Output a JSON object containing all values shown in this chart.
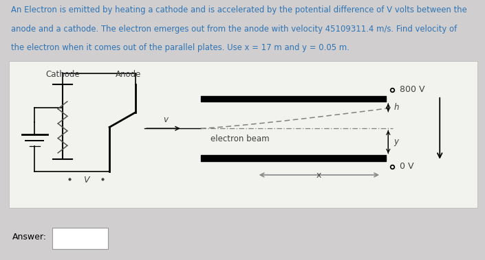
{
  "bg_color": "#d0cece",
  "panel_color": "#f2f2ee",
  "text_color": "#2e74b5",
  "diagram_text_color": "#404040",
  "title_lines": [
    "An Electron is emitted by heating a cathode and is accelerated by the potential difference of V volts between the",
    "anode and a cathode. The electron emerges out from the anode with velocity 45109311.4 m/s. Find velocity of",
    "the electron when it comes out of the parallel plates. Use x = 17 m and y = 0.05 m."
  ],
  "answer_label": "Answer:",
  "voltage_800": "800 V",
  "voltage_0": "0 V",
  "label_cathode": "Cathode",
  "label_anode": "Anode",
  "label_v": "v",
  "label_electron_beam": "electron beam",
  "label_h": "h",
  "label_y": "y",
  "label_V": "V",
  "label_x": "x"
}
